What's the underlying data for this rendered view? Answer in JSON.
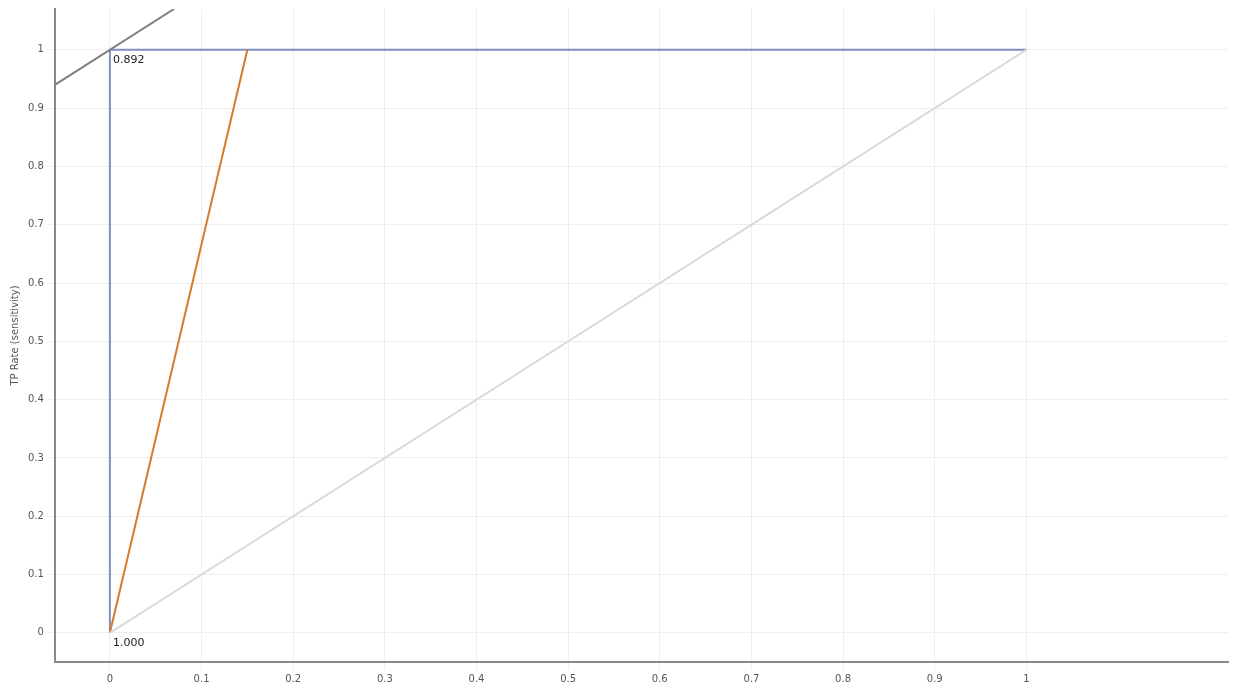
{
  "chart_data": {
    "type": "line",
    "ylabel": "TP Rate (sensitivity)",
    "series": [
      {
        "color": "#dadada",
        "x": [
          0,
          1
        ],
        "values": [
          0,
          1
        ]
      },
      {
        "color": "#808080",
        "x": [
          -0.06,
          0.07
        ],
        "values": [
          0.94,
          1.07
        ]
      },
      {
        "color": "#d67a2c",
        "x": [
          0,
          0.15
        ],
        "values": [
          0,
          1
        ]
      },
      {
        "color": "#7f8fbf",
        "x": [
          0,
          0,
          1
        ],
        "values": [
          0,
          1,
          1
        ]
      }
    ],
    "annotations": [
      {
        "text": "0.892",
        "x": 0,
        "y": 1
      },
      {
        "text": "1.000",
        "x": 0,
        "y": 0
      }
    ],
    "xlim": [
      -0.06,
      1.22
    ],
    "ylim": [
      -0.05,
      1.07
    ],
    "xticks": [
      0,
      0.1,
      0.2,
      0.3,
      0.4,
      0.5,
      0.6,
      0.7,
      0.8,
      0.9,
      1
    ],
    "yticks": [
      0,
      0.1,
      0.2,
      0.3,
      0.4,
      0.5,
      0.6,
      0.7,
      0.8,
      0.9,
      1
    ],
    "grid": true,
    "legend": false,
    "marker": "none",
    "line_style": "solid"
  }
}
